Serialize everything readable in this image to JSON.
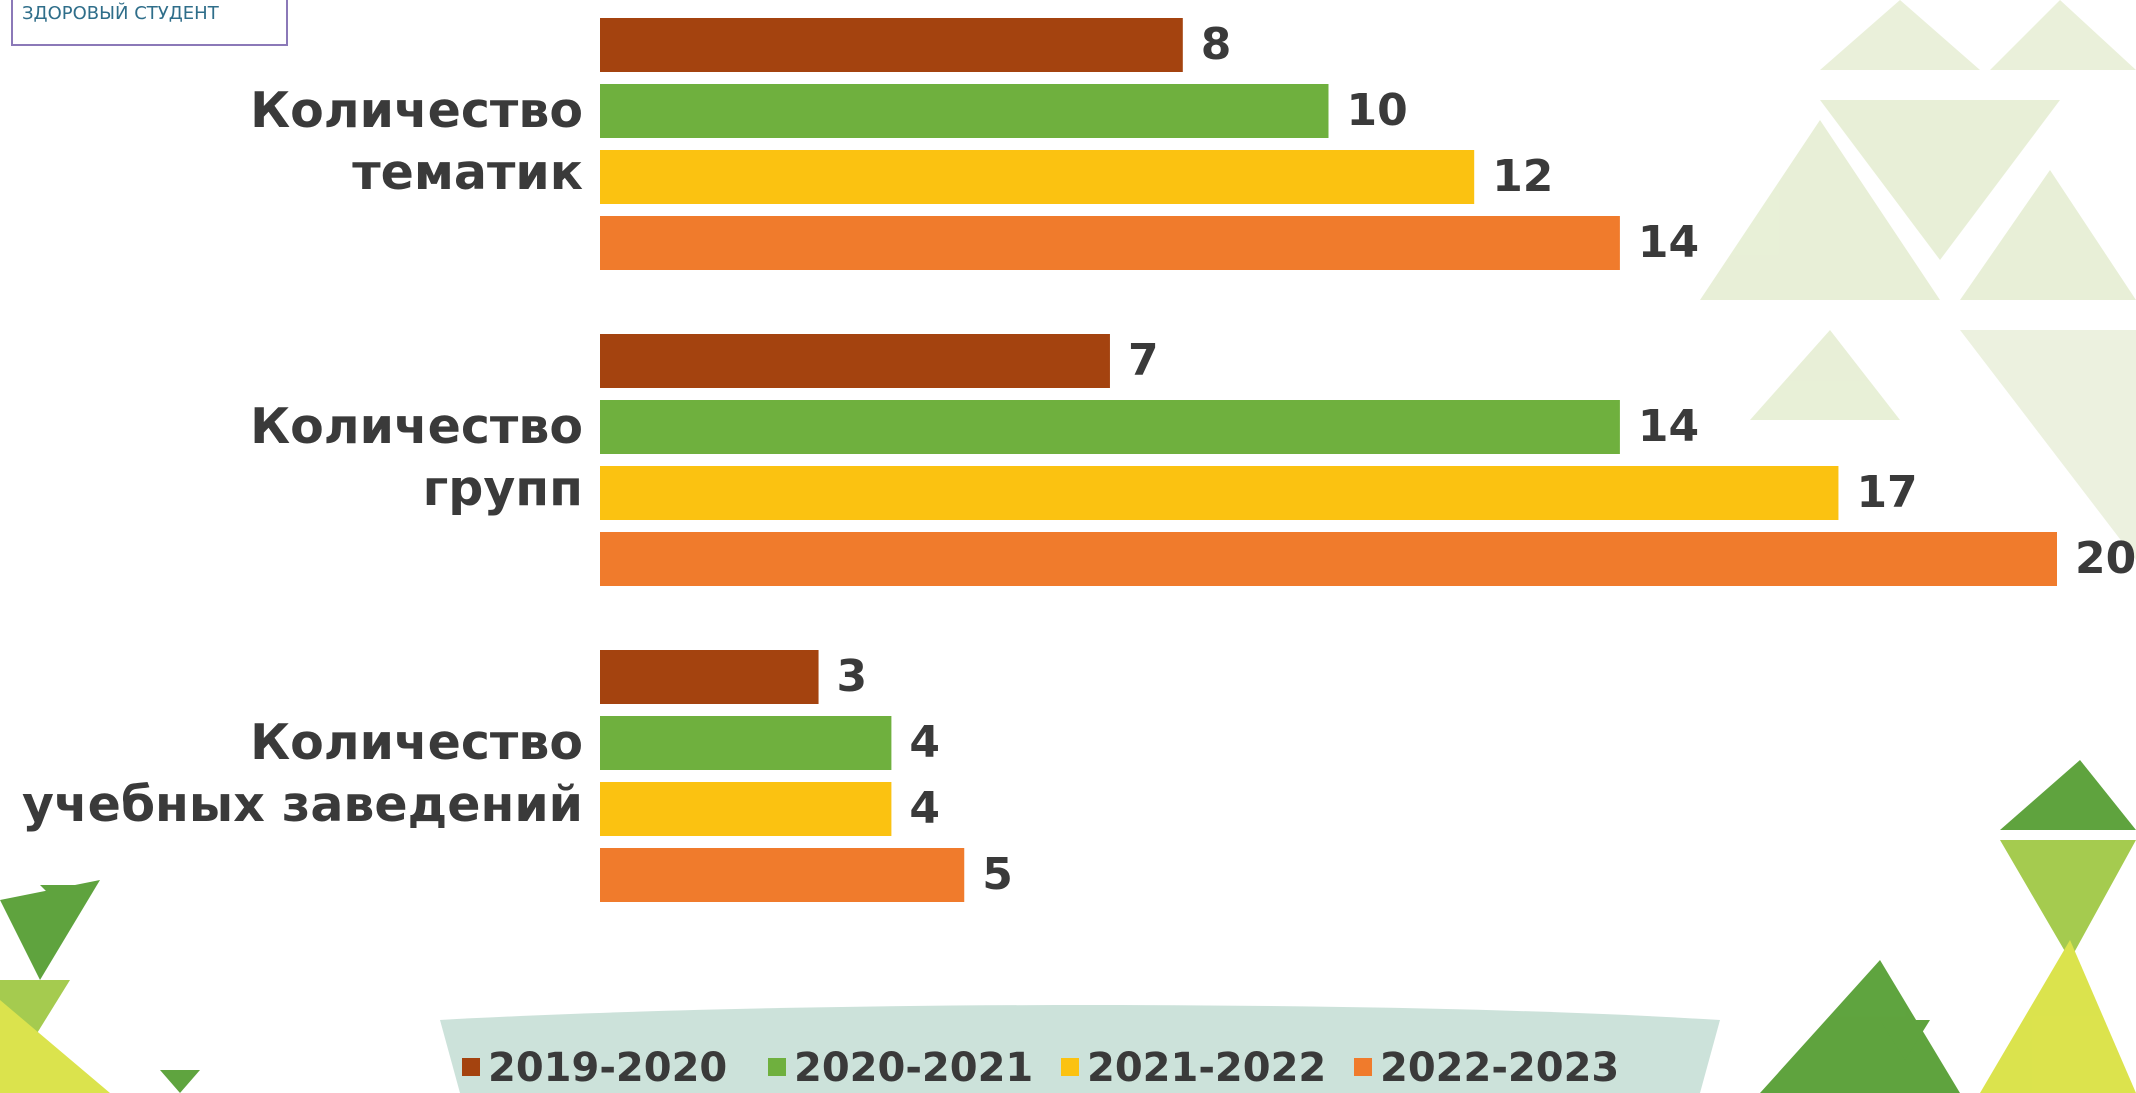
{
  "logo": "ЗДОРОВЫЙ СТУДЕНТ",
  "chart_data": {
    "type": "bar",
    "orientation": "horizontal",
    "categories": [
      "Количество тематик",
      "Количество групп",
      "Количество учебных заведений"
    ],
    "series": [
      {
        "name": "2019-2020",
        "color": "#a4430f",
        "values": [
          8,
          7,
          3
        ]
      },
      {
        "name": "2020-2021",
        "color": "#6fb03e",
        "values": [
          10,
          14,
          4
        ]
      },
      {
        "name": "2021-2022",
        "color": "#fbc211",
        "values": [
          12,
          17,
          4
        ]
      },
      {
        "name": "2022-2023",
        "color": "#f07b2c",
        "values": [
          14,
          20,
          5
        ]
      }
    ],
    "legend": "bottom"
  }
}
